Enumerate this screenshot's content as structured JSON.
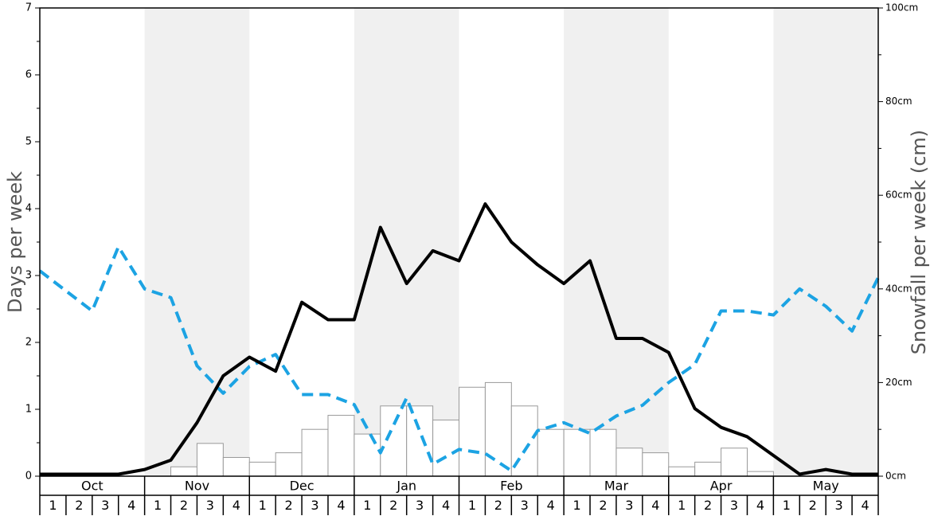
{
  "chart_data": {
    "type": "bar",
    "left_axis": {
      "label": "Days per week",
      "range": [
        0,
        7
      ],
      "ticks": [
        0,
        1,
        2,
        3,
        4,
        5,
        6,
        7
      ],
      "tick_labels": [
        "0",
        "1",
        "2",
        "3",
        "4",
        "5",
        "6",
        "7"
      ]
    },
    "right_axis": {
      "label": "Snowfall per week (cm)",
      "range": [
        0,
        100
      ],
      "ticks": [
        0,
        20,
        40,
        60,
        80,
        100
      ],
      "tick_labels": [
        "0cm",
        "20cm",
        "40cm",
        "60cm",
        "80cm",
        "100cm"
      ]
    },
    "months": [
      "Oct",
      "Nov",
      "Dec",
      "Jan",
      "Feb",
      "Mar",
      "Apr",
      "May"
    ],
    "weeks_per_month": [
      "1",
      "2",
      "3",
      "4"
    ],
    "snowfall_bars_cm": [
      0,
      0,
      0,
      0,
      0,
      2,
      7,
      4,
      3,
      5,
      10,
      13,
      9,
      15,
      15,
      12,
      19,
      20,
      15,
      10,
      10,
      10,
      6,
      5,
      2,
      3,
      6,
      1,
      0,
      0,
      0,
      0
    ],
    "snow_days_per_week": [
      0.03,
      0.03,
      0.03,
      0.03,
      0.1,
      0.24,
      0.8,
      1.5,
      1.78,
      1.57,
      2.6,
      2.34,
      2.34,
      3.72,
      2.88,
      3.37,
      3.22,
      4.07,
      3.5,
      3.16,
      2.88,
      3.22,
      2.06,
      2.06,
      1.85,
      1.01,
      0.73,
      0.59,
      0.31,
      0.03,
      0.1,
      0.03,
      0.03
    ],
    "dashed_series_days_per_week": [
      3.07,
      2.77,
      2.47,
      3.43,
      2.8,
      2.67,
      1.65,
      1.24,
      1.64,
      1.82,
      1.22,
      1.22,
      1.07,
      0.35,
      1.17,
      0.18,
      0.4,
      0.34,
      0.08,
      0.68,
      0.8,
      0.64,
      0.9,
      1.06,
      1.4,
      1.67,
      2.47,
      2.47,
      2.41,
      2.8,
      2.54,
      2.17,
      2.97
    ],
    "grid": false,
    "legend": "none",
    "colors": {
      "line": "#000000",
      "dashed": "#1ca3e3",
      "bar_fill": "#ffffff",
      "bar_stroke": "#999999",
      "band": "#f0f0f0"
    }
  }
}
